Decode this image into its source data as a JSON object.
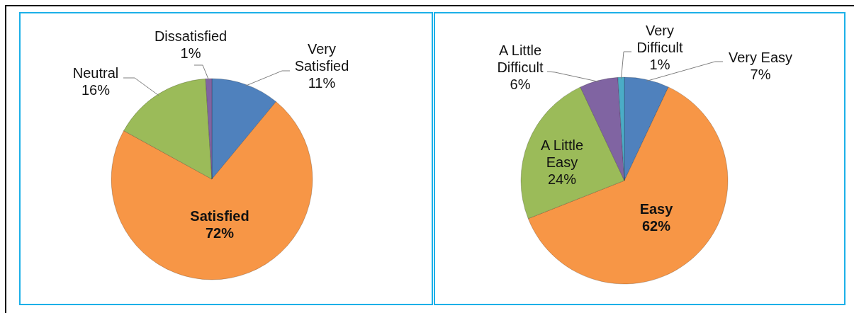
{
  "chart_data": [
    {
      "type": "pie",
      "categories": [
        "Very Satisfied",
        "Satisfied",
        "Neutral",
        "Dissatisfied"
      ],
      "values": [
        11,
        72,
        16,
        1
      ],
      "value_labels": [
        "11%",
        "72%",
        "16%",
        "1%"
      ],
      "colors": [
        "#4f81bd",
        "#f79646",
        "#9bbb59",
        "#8064a2"
      ]
    },
    {
      "type": "pie",
      "categories": [
        "Very Easy",
        "Easy",
        "A Little Easy",
        "A Little Difficult",
        "Very Difficult"
      ],
      "values": [
        7,
        62,
        24,
        6,
        1
      ],
      "value_labels": [
        "7%",
        "62%",
        "24%",
        "6%",
        "1%"
      ],
      "colors": [
        "#4f81bd",
        "#f79646",
        "#9bbb59",
        "#8064a2",
        "#4bacc6"
      ]
    }
  ]
}
